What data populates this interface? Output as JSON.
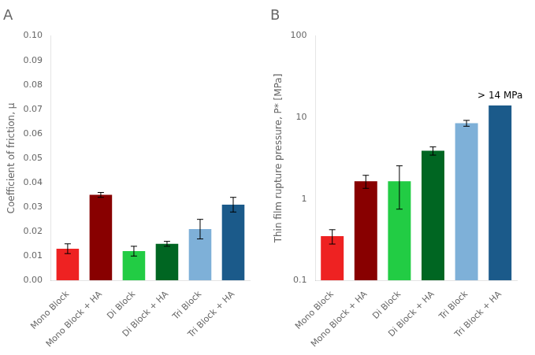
{
  "chart_data": [
    {
      "type": "bar",
      "title": "A",
      "ylabel": "Coefficient of friction, μ",
      "categories": [
        "Mono Block",
        "Mono Block + HA",
        "Di Block",
        "Di Block + HA",
        "Tri Block",
        "Tri Block + HA"
      ],
      "values": [
        0.013,
        0.035,
        0.012,
        0.015,
        0.021,
        0.031
      ],
      "errors": [
        0.002,
        0.001,
        0.002,
        0.001,
        0.004,
        0.003
      ],
      "colors": [
        "#EE2222",
        "#880000",
        "#22CC44",
        "#006622",
        "#7EB0D8",
        "#1B5A8A"
      ],
      "ylim": [
        0,
        0.1
      ],
      "yticks": [
        {
          "value": 0,
          "label": "0.00"
        },
        0.01,
        0.02,
        0.03,
        0.04,
        0.05,
        0.06,
        0.07,
        0.08,
        0.09,
        {
          "value": 0.1,
          "label": "0.10"
        }
      ],
      "grid": false
    },
    {
      "type": "bar",
      "title": "B",
      "ylabel": "Thin film rupture pressure, P* [MPa]",
      "categories": [
        "Mono Block",
        "Mono Block + HA",
        "Di Block",
        "Di Block + HA",
        "Tri Block",
        "Tri Block + HA"
      ],
      "values": [
        0.35,
        1.65,
        1.65,
        3.9,
        8.5,
        14.0
      ],
      "errors_low": [
        0.07,
        0.3,
        0.9,
        0.45,
        0.7,
        0
      ],
      "errors_high": [
        0.07,
        0.3,
        0.9,
        0.45,
        0.7,
        0
      ],
      "colors": [
        "#EE2222",
        "#880000",
        "#22CC44",
        "#006622",
        "#7EB0D8",
        "#1B5A8A"
      ],
      "log": "y",
      "ylim": [
        0.1,
        100
      ],
      "yticks": [
        0.1,
        1,
        10,
        100
      ],
      "annotations": [
        {
          "text": "> 14 MPa",
          "x": "Tri Block + HA",
          "y": 14.0
        }
      ],
      "grid": false
    }
  ]
}
